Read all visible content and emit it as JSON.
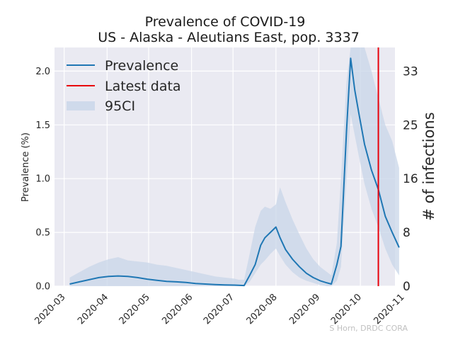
{
  "chart_data": {
    "type": "line",
    "title_line1": "Prevalence of COVID-19",
    "title_line2": "US - Alaska - Aleutians East, pop. 3337",
    "ylabel": "Prevalence (%)",
    "ylabel_right": "# of infections",
    "ylim": [
      0,
      2.22
    ],
    "xlim": [
      "2020-02-23",
      "2020-10-26"
    ],
    "yticks": [
      0.0,
      0.5,
      1.0,
      1.5,
      2.0
    ],
    "ytick_labels": [
      "0.0",
      "0.5",
      "1.0",
      "1.5",
      "2.0"
    ],
    "xticks": [
      "2020-03-01",
      "2020-04-01",
      "2020-05-01",
      "2020-06-01",
      "2020-07-01",
      "2020-08-01",
      "2020-09-01",
      "2020-10-01",
      "2020-11-01"
    ],
    "xtick_labels": [
      "2020-03",
      "2020-04",
      "2020-05",
      "2020-06",
      "2020-07",
      "2020-08",
      "2020-09",
      "2020-10",
      "2020-11"
    ],
    "right_ticks": [
      0,
      8,
      16,
      25,
      33
    ],
    "right_tick_labels": [
      "0",
      "8",
      "16",
      "25",
      "33"
    ],
    "right_tick_prevalence": [
      0.0,
      0.5,
      1.0,
      1.5,
      2.0
    ],
    "grid": true,
    "legend_position": "top-left",
    "legend": [
      "Prevalence",
      "Latest data",
      "95CI"
    ],
    "latest_data_date": "2020-10-14",
    "colors": {
      "prevalence": "#1f77b4",
      "latest": "#e8000b",
      "ci": "#c8d6e8",
      "background": "#eaeaf2",
      "grid": "#ffffff"
    },
    "series": [
      {
        "name": "Prevalence",
        "x": [
          "2020-03-05",
          "2020-03-12",
          "2020-03-19",
          "2020-03-26",
          "2020-04-02",
          "2020-04-09",
          "2020-04-16",
          "2020-04-23",
          "2020-04-30",
          "2020-05-07",
          "2020-05-14",
          "2020-05-21",
          "2020-05-28",
          "2020-06-04",
          "2020-06-11",
          "2020-06-18",
          "2020-06-25",
          "2020-07-02",
          "2020-07-05",
          "2020-07-09",
          "2020-07-13",
          "2020-07-17",
          "2020-07-21",
          "2020-07-24",
          "2020-07-28",
          "2020-08-01",
          "2020-08-04",
          "2020-08-08",
          "2020-08-13",
          "2020-08-18",
          "2020-08-23",
          "2020-08-28",
          "2020-09-02",
          "2020-09-07",
          "2020-09-10",
          "2020-09-14",
          "2020-09-17",
          "2020-09-21",
          "2020-09-24",
          "2020-09-27",
          "2020-09-30",
          "2020-10-04",
          "2020-10-09",
          "2020-10-14",
          "2020-10-19",
          "2020-10-24",
          "2020-10-29"
        ],
        "values": [
          0.02,
          0.04,
          0.06,
          0.08,
          0.09,
          0.095,
          0.09,
          0.08,
          0.065,
          0.055,
          0.045,
          0.04,
          0.035,
          0.025,
          0.02,
          0.015,
          0.012,
          0.01,
          0.008,
          0.006,
          0.1,
          0.2,
          0.38,
          0.45,
          0.5,
          0.55,
          0.45,
          0.34,
          0.25,
          0.18,
          0.12,
          0.08,
          0.05,
          0.03,
          0.02,
          0.2,
          0.37,
          1.45,
          2.12,
          1.82,
          1.6,
          1.32,
          1.08,
          0.9,
          0.65,
          0.5,
          0.36
        ]
      },
      {
        "name": "95CI_upper",
        "x": [
          "2020-03-05",
          "2020-03-12",
          "2020-03-19",
          "2020-03-26",
          "2020-04-02",
          "2020-04-09",
          "2020-04-16",
          "2020-04-23",
          "2020-04-30",
          "2020-05-07",
          "2020-05-14",
          "2020-05-21",
          "2020-05-28",
          "2020-06-04",
          "2020-06-11",
          "2020-06-18",
          "2020-06-25",
          "2020-07-02",
          "2020-07-05",
          "2020-07-09",
          "2020-07-13",
          "2020-07-17",
          "2020-07-21",
          "2020-07-24",
          "2020-07-28",
          "2020-08-01",
          "2020-08-04",
          "2020-08-08",
          "2020-08-13",
          "2020-08-18",
          "2020-08-23",
          "2020-08-28",
          "2020-09-02",
          "2020-09-07",
          "2020-09-10",
          "2020-09-14",
          "2020-09-17",
          "2020-09-21",
          "2020-09-24",
          "2020-09-27",
          "2020-09-30",
          "2020-10-04",
          "2020-10-09",
          "2020-10-14",
          "2020-10-19",
          "2020-10-24",
          "2020-10-29"
        ],
        "values": [
          0.08,
          0.13,
          0.18,
          0.22,
          0.25,
          0.27,
          0.24,
          0.23,
          0.22,
          0.2,
          0.19,
          0.17,
          0.15,
          0.13,
          0.11,
          0.09,
          0.08,
          0.07,
          0.06,
          0.06,
          0.3,
          0.55,
          0.7,
          0.74,
          0.72,
          0.76,
          0.92,
          0.78,
          0.62,
          0.48,
          0.35,
          0.25,
          0.18,
          0.13,
          0.1,
          0.4,
          1.0,
          1.9,
          2.22,
          2.22,
          2.22,
          2.22,
          2.0,
          1.75,
          1.5,
          1.35,
          1.1
        ]
      },
      {
        "name": "95CI_lower",
        "x": [
          "2020-03-05",
          "2020-03-12",
          "2020-03-19",
          "2020-03-26",
          "2020-04-02",
          "2020-04-09",
          "2020-04-16",
          "2020-04-23",
          "2020-04-30",
          "2020-05-07",
          "2020-05-14",
          "2020-05-21",
          "2020-05-28",
          "2020-06-04",
          "2020-06-11",
          "2020-06-18",
          "2020-06-25",
          "2020-07-02",
          "2020-07-05",
          "2020-07-09",
          "2020-07-13",
          "2020-07-17",
          "2020-07-21",
          "2020-07-24",
          "2020-07-28",
          "2020-08-01",
          "2020-08-04",
          "2020-08-08",
          "2020-08-13",
          "2020-08-18",
          "2020-08-23",
          "2020-08-28",
          "2020-09-02",
          "2020-09-07",
          "2020-09-10",
          "2020-09-14",
          "2020-09-17",
          "2020-09-21",
          "2020-09-24",
          "2020-09-27",
          "2020-09-30",
          "2020-10-04",
          "2020-10-09",
          "2020-10-14",
          "2020-10-19",
          "2020-10-24",
          "2020-10-29"
        ],
        "values": [
          0,
          0,
          0,
          0,
          0,
          0,
          0,
          0,
          0,
          0,
          0,
          0,
          0,
          0,
          0,
          0,
          0,
          0,
          0,
          0,
          0.04,
          0.12,
          0.2,
          0.24,
          0.3,
          0.35,
          0.28,
          0.2,
          0.13,
          0.08,
          0.05,
          0.03,
          0.01,
          0,
          0,
          0.05,
          0.18,
          1.0,
          1.6,
          1.4,
          1.2,
          0.95,
          0.72,
          0.55,
          0.35,
          0.2,
          0.1
        ]
      }
    ]
  },
  "footer": {
    "credit": "S Horn, DRDC CORA"
  }
}
